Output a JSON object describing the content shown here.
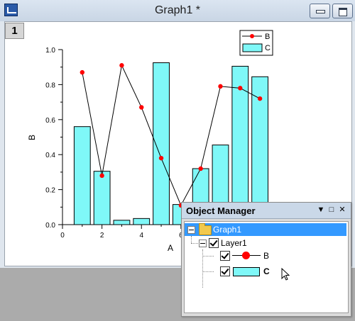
{
  "window": {
    "title": "Graph1 *",
    "layer_badge": "1"
  },
  "object_manager": {
    "title": "Object Manager",
    "tree": {
      "root": "Graph1",
      "layer": "Layer1",
      "plots": [
        {
          "name": "B",
          "icon": "line-symbol-icon"
        },
        {
          "name": "C",
          "icon": "bar-fill-icon"
        }
      ]
    }
  },
  "colors": {
    "bar_fill": "#7ff8f8",
    "line_symbol": "#ff0000",
    "selection": "#3399ff"
  },
  "chart_data": {
    "type": "bar",
    "xlabel": "A",
    "ylabel": "B",
    "ylim": [
      0,
      1.0
    ],
    "xlim": [
      0,
      10.5
    ],
    "yticks": [
      "0.0",
      "0.2",
      "0.4",
      "0.6",
      "0.8",
      "1.0"
    ],
    "xticks": [
      "0",
      "2",
      "4",
      "6"
    ],
    "legend": [
      "B",
      "C"
    ],
    "legend_position": "top-right",
    "series": [
      {
        "name": "B",
        "kind": "line-symbol",
        "x": [
          1,
          2,
          3,
          4,
          5,
          6,
          7,
          8,
          9,
          10
        ],
        "y": [
          0.87,
          0.28,
          0.91,
          0.67,
          0.38,
          0.11,
          0.32,
          0.79,
          0.78,
          0.72
        ]
      },
      {
        "name": "C",
        "kind": "column",
        "x": [
          1,
          2,
          3,
          4,
          5,
          6,
          7,
          8,
          9,
          10
        ],
        "y": [
          0.56,
          0.305,
          0.025,
          0.035,
          0.925,
          0.115,
          0.32,
          0.455,
          0.905,
          0.845
        ]
      }
    ]
  }
}
